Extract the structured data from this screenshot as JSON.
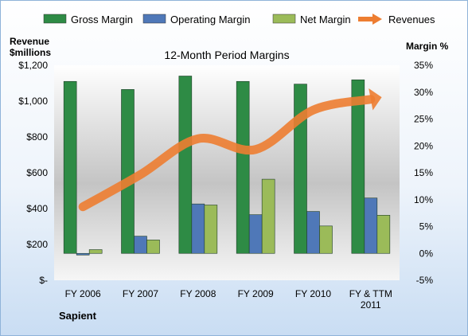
{
  "chart_data": {
    "type": "bar",
    "title": "12-Month Period Margins",
    "categories": [
      "FY 2006",
      "FY 2007",
      "FY 2008",
      "FY 2009",
      "FY 2010",
      "FY & TTM 2011"
    ],
    "series": [
      {
        "name": "Gross Margin",
        "axis": "right",
        "color": "#2e8b45",
        "values": [
          32,
          30.5,
          33,
          32,
          31.5,
          32.3
        ]
      },
      {
        "name": "Operating Margin",
        "axis": "right",
        "color": "#4f78b8",
        "values": [
          -0.3,
          3.2,
          9.2,
          7.2,
          7.8,
          10.3
        ]
      },
      {
        "name": "Net Margin",
        "axis": "right",
        "color": "#9bbb59",
        "values": [
          0.7,
          2.5,
          9,
          13.8,
          5.1,
          7.1
        ]
      },
      {
        "name": "Revenues",
        "axis": "left",
        "type": "line",
        "color": "#ed7d31",
        "values": [
          410,
          590,
          790,
          730,
          950,
          1010
        ]
      }
    ],
    "y_left": {
      "label": "Revenue\n$millions",
      "min": 0,
      "max": 1200,
      "ticks": [
        "$-",
        "$200",
        "$400",
        "$600",
        "$800",
        "$1,000",
        "$1,200"
      ]
    },
    "y_right": {
      "label": "Margin %",
      "min": -5,
      "max": 35,
      "ticks": [
        "-5%",
        "0%",
        "5%",
        "10%",
        "15%",
        "20%",
        "25%",
        "30%",
        "35%"
      ]
    },
    "legend": {
      "position": "top"
    },
    "annotation": "Sapient",
    "grid": false
  }
}
